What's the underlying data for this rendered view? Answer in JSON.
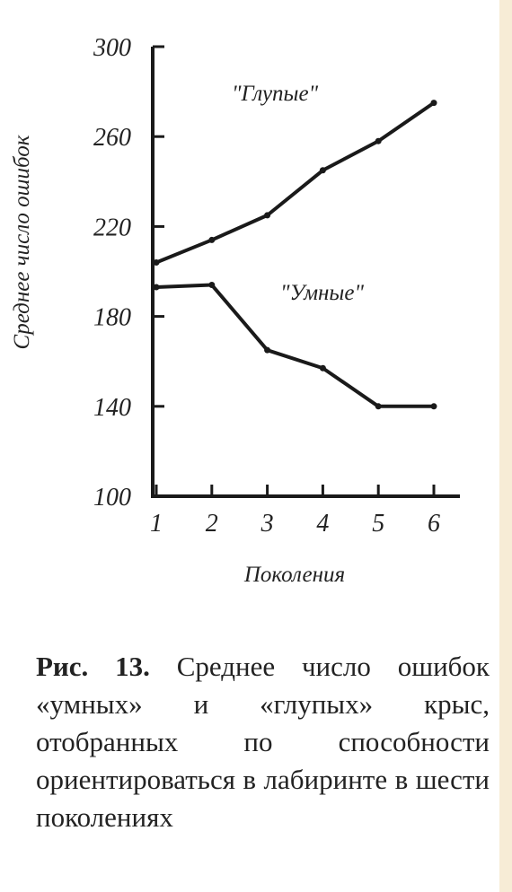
{
  "chart_data": {
    "type": "line",
    "x": [
      1,
      2,
      3,
      4,
      5,
      6
    ],
    "xlabel": "Поколения",
    "ylabel": "Среднее число ошибок",
    "ylim": [
      100,
      300
    ],
    "yticks": [
      100,
      140,
      180,
      220,
      260,
      300
    ],
    "xticks": [
      1,
      2,
      3,
      4,
      5,
      6
    ],
    "series": [
      {
        "name": "\"Глупые\"",
        "values": [
          204,
          214,
          225,
          245,
          258,
          275
        ]
      },
      {
        "name": "\"Умные\"",
        "values": [
          193,
          194,
          165,
          157,
          140,
          140
        ]
      }
    ],
    "line_color": "#1a1a1a"
  },
  "caption": {
    "label": "Рис. 13.",
    "text": "Среднее число ошибок «умных» и «глупых» крыс, отобранных по способности ориентироваться в лабиринте в шести поколениях"
  }
}
